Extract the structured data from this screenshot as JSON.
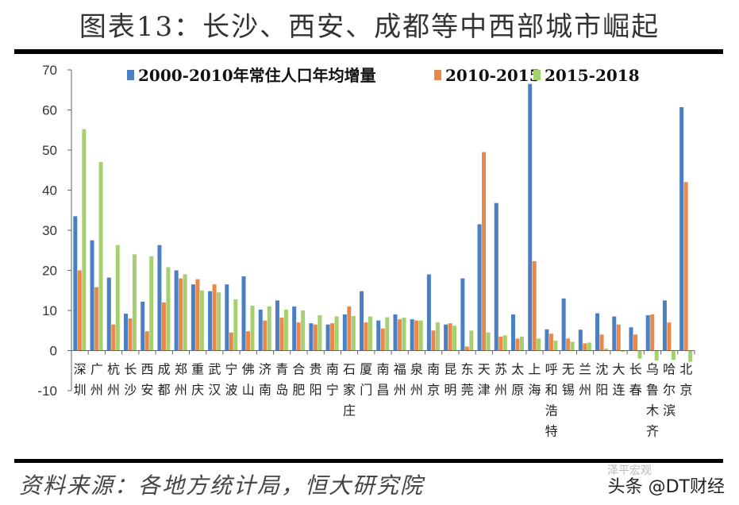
{
  "title": "图表13：长沙、西安、成都等中西部城市崛起",
  "source": "资料来源：各地方统计局，恒大研究院",
  "watermark": "头条 @DT财经",
  "watermark_faint": "泽平宏观",
  "colors": {
    "series1": "#4a7fc1",
    "series2": "#e8894a",
    "series3": "#a6cf6e"
  },
  "chart_data": {
    "type": "bar",
    "title": "图表13：长沙、西安、成都等中西部城市崛起",
    "xlabel": "",
    "ylabel": "",
    "ylim": [
      -10,
      70
    ],
    "yticks": [
      -10,
      0,
      10,
      20,
      30,
      40,
      50,
      60,
      70
    ],
    "grid": false,
    "legend_position": "top",
    "categories": [
      "深圳",
      "广州",
      "杭州",
      "长沙",
      "西安",
      "成都",
      "郑州",
      "重庆",
      "武汉",
      "宁波",
      "佛山",
      "济南",
      "青岛",
      "合肥",
      "贵阳",
      "南宁",
      "石家庄",
      "厦门",
      "南昌",
      "福州",
      "泉州",
      "南京",
      "昆明",
      "东莞",
      "天津",
      "苏州",
      "太原",
      "上海",
      "呼和浩特",
      "无锡",
      "兰州",
      "沈阳",
      "大连",
      "长春",
      "乌鲁木齐",
      "哈尔滨",
      "北京"
    ],
    "series": [
      {
        "name": "2000-2010年常住人口年均增量",
        "values": [
          33.5,
          27.5,
          18.2,
          9.2,
          12.2,
          26.3,
          20.0,
          16.5,
          14.8,
          16.5,
          18.5,
          10.2,
          12.5,
          11.0,
          6.8,
          6.5,
          9.0,
          14.8,
          7.5,
          9.0,
          7.8,
          19.0,
          6.5,
          18.0,
          31.5,
          36.8,
          9.0,
          66.5,
          5.3,
          13.0,
          5.2,
          9.3,
          8.5,
          5.8,
          8.8,
          12.5,
          60.7
        ]
      },
      {
        "name": "2010-2015",
        "values": [
          20.0,
          15.8,
          6.5,
          8.0,
          4.8,
          12.0,
          18.0,
          17.8,
          16.5,
          4.5,
          4.8,
          7.5,
          8.2,
          7.0,
          6.5,
          6.8,
          11.0,
          7.0,
          5.5,
          7.8,
          7.5,
          5.0,
          6.8,
          1.0,
          49.5,
          3.5,
          3.0,
          22.3,
          4.2,
          3.0,
          1.8,
          4.0,
          6.5,
          4.0,
          9.0,
          7.0,
          42.0
        ]
      },
      {
        "name": "2015-2018",
        "values": [
          55.2,
          47.0,
          26.3,
          24.0,
          23.5,
          20.8,
          19.0,
          15.0,
          14.5,
          12.8,
          11.2,
          11.0,
          10.2,
          10.0,
          8.8,
          8.5,
          8.6,
          8.5,
          8.3,
          8.2,
          7.5,
          7.0,
          6.2,
          5.0,
          4.5,
          3.8,
          3.5,
          3.0,
          2.5,
          2.2,
          2.0,
          0.5,
          -0.3,
          -2.0,
          -2.5,
          -2.3,
          -2.8
        ]
      }
    ]
  }
}
